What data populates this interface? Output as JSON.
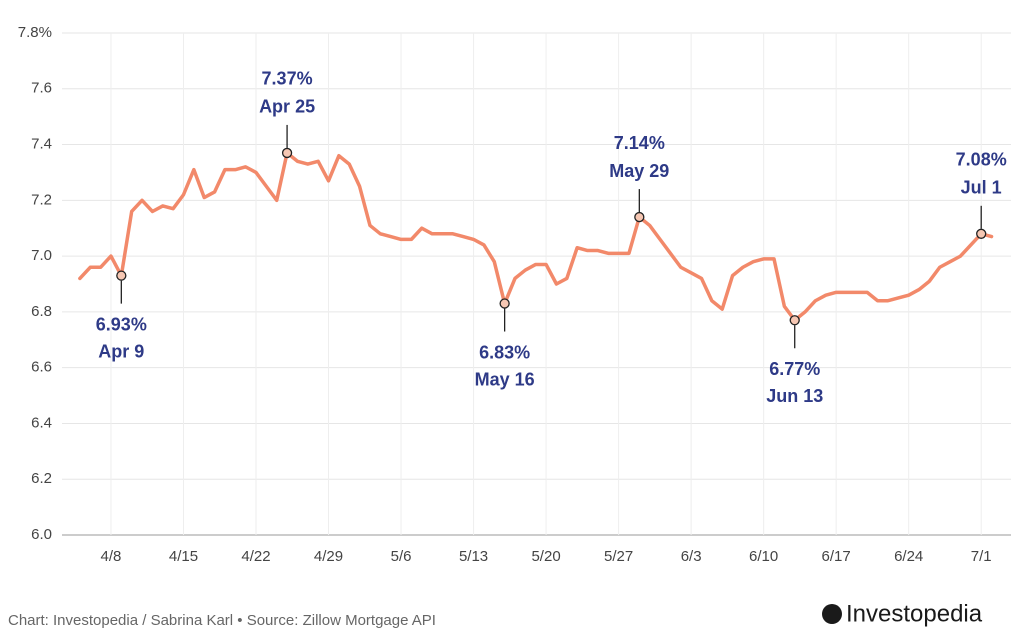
{
  "chart_data": {
    "type": "line",
    "categories": [
      null,
      null,
      null,
      "4/8",
      null,
      null,
      null,
      null,
      null,
      null,
      "4/15",
      null,
      null,
      null,
      null,
      null,
      null,
      "4/22",
      null,
      null,
      null,
      null,
      null,
      null,
      "4/29",
      null,
      null,
      null,
      null,
      null,
      null,
      "5/6",
      null,
      null,
      null,
      null,
      null,
      null,
      "5/13",
      null,
      null,
      null,
      null,
      null,
      null,
      "5/20",
      null,
      null,
      null,
      null,
      null,
      null,
      "5/27",
      null,
      null,
      null,
      null,
      null,
      null,
      "6/3",
      null,
      null,
      null,
      null,
      null,
      null,
      "6/10",
      null,
      null,
      null,
      null,
      null,
      null,
      "6/17",
      null,
      null,
      null,
      null,
      null,
      null,
      "6/24",
      null,
      null,
      null,
      null,
      null,
      null,
      "7/1",
      null
    ],
    "series": [
      {
        "color": "#f2896a",
        "values": [
          6.92,
          6.96,
          6.96,
          7.0,
          6.93,
          7.16,
          7.2,
          7.16,
          7.18,
          7.17,
          7.22,
          7.31,
          7.21,
          7.23,
          7.31,
          7.31,
          7.32,
          7.3,
          7.25,
          7.2,
          7.37,
          7.34,
          7.33,
          7.34,
          7.27,
          7.36,
          7.33,
          7.25,
          7.11,
          7.08,
          7.07,
          7.06,
          7.06,
          7.1,
          7.08,
          7.08,
          7.08,
          7.07,
          7.06,
          7.04,
          6.98,
          6.83,
          6.92,
          6.95,
          6.97,
          6.97,
          6.9,
          6.92,
          7.03,
          7.02,
          7.02,
          7.01,
          7.01,
          7.01,
          7.14,
          7.11,
          7.06,
          7.01,
          6.96,
          6.94,
          6.92,
          6.84,
          6.81,
          6.93,
          6.96,
          6.98,
          6.99,
          6.99,
          6.82,
          6.77,
          6.8,
          6.84,
          6.86,
          6.87,
          6.87,
          6.87,
          6.87,
          6.84,
          6.84,
          6.85,
          6.86,
          6.88,
          6.91,
          6.96,
          6.98,
          7.0,
          7.04,
          7.08,
          7.07
        ],
        "value_labels": [
          null,
          null,
          null,
          null,
          "6.93%",
          null,
          null,
          null,
          null,
          null,
          null,
          null,
          null,
          null,
          null,
          null,
          null,
          null,
          null,
          null,
          "7.37%",
          null,
          null,
          null,
          null,
          null,
          null,
          null,
          null,
          null,
          null,
          null,
          null,
          null,
          null,
          null,
          null,
          null,
          null,
          null,
          null,
          "6.83%",
          null,
          null,
          null,
          null,
          null,
          null,
          null,
          null,
          null,
          null,
          null,
          null,
          "7.14%",
          null,
          null,
          null,
          null,
          null,
          null,
          null,
          null,
          null,
          null,
          null,
          null,
          null,
          null,
          "6.77%",
          null,
          null,
          null,
          null,
          null,
          null,
          null,
          null,
          null,
          null,
          null,
          null,
          null,
          null,
          null,
          null,
          null,
          "7.08%",
          null
        ],
        "date_labels": [
          null,
          null,
          null,
          null,
          "Apr 9",
          null,
          null,
          null,
          null,
          null,
          null,
          null,
          null,
          null,
          null,
          null,
          null,
          null,
          null,
          null,
          "Apr 25",
          null,
          null,
          null,
          null,
          null,
          null,
          null,
          null,
          null,
          null,
          null,
          null,
          null,
          null,
          null,
          null,
          null,
          null,
          null,
          null,
          "May 16",
          null,
          null,
          null,
          null,
          null,
          null,
          null,
          null,
          null,
          null,
          null,
          null,
          "May 29",
          null,
          null,
          null,
          null,
          null,
          null,
          null,
          null,
          null,
          null,
          null,
          null,
          null,
          null,
          "Jun 13",
          null,
          null,
          null,
          null,
          null,
          null,
          null,
          null,
          null,
          null,
          null,
          null,
          null,
          null,
          null,
          null,
          null,
          "Jul 1",
          null
        ]
      }
    ],
    "ylim": [
      6.0,
      7.8
    ],
    "yticks": [
      {
        "value": 6.0,
        "label": "6.0"
      },
      6.2,
      6.4,
      6.6,
      6.8,
      {
        "value": 7.0,
        "label": "7.0"
      },
      7.2,
      7.4,
      7.6,
      {
        "value": 7.8,
        "label": "7.8%"
      }
    ],
    "grid": true,
    "source": "Chart: Investopedia / Sabrina Karl • Source: Zillow Mortgage API",
    "logo": "Investopedia"
  }
}
